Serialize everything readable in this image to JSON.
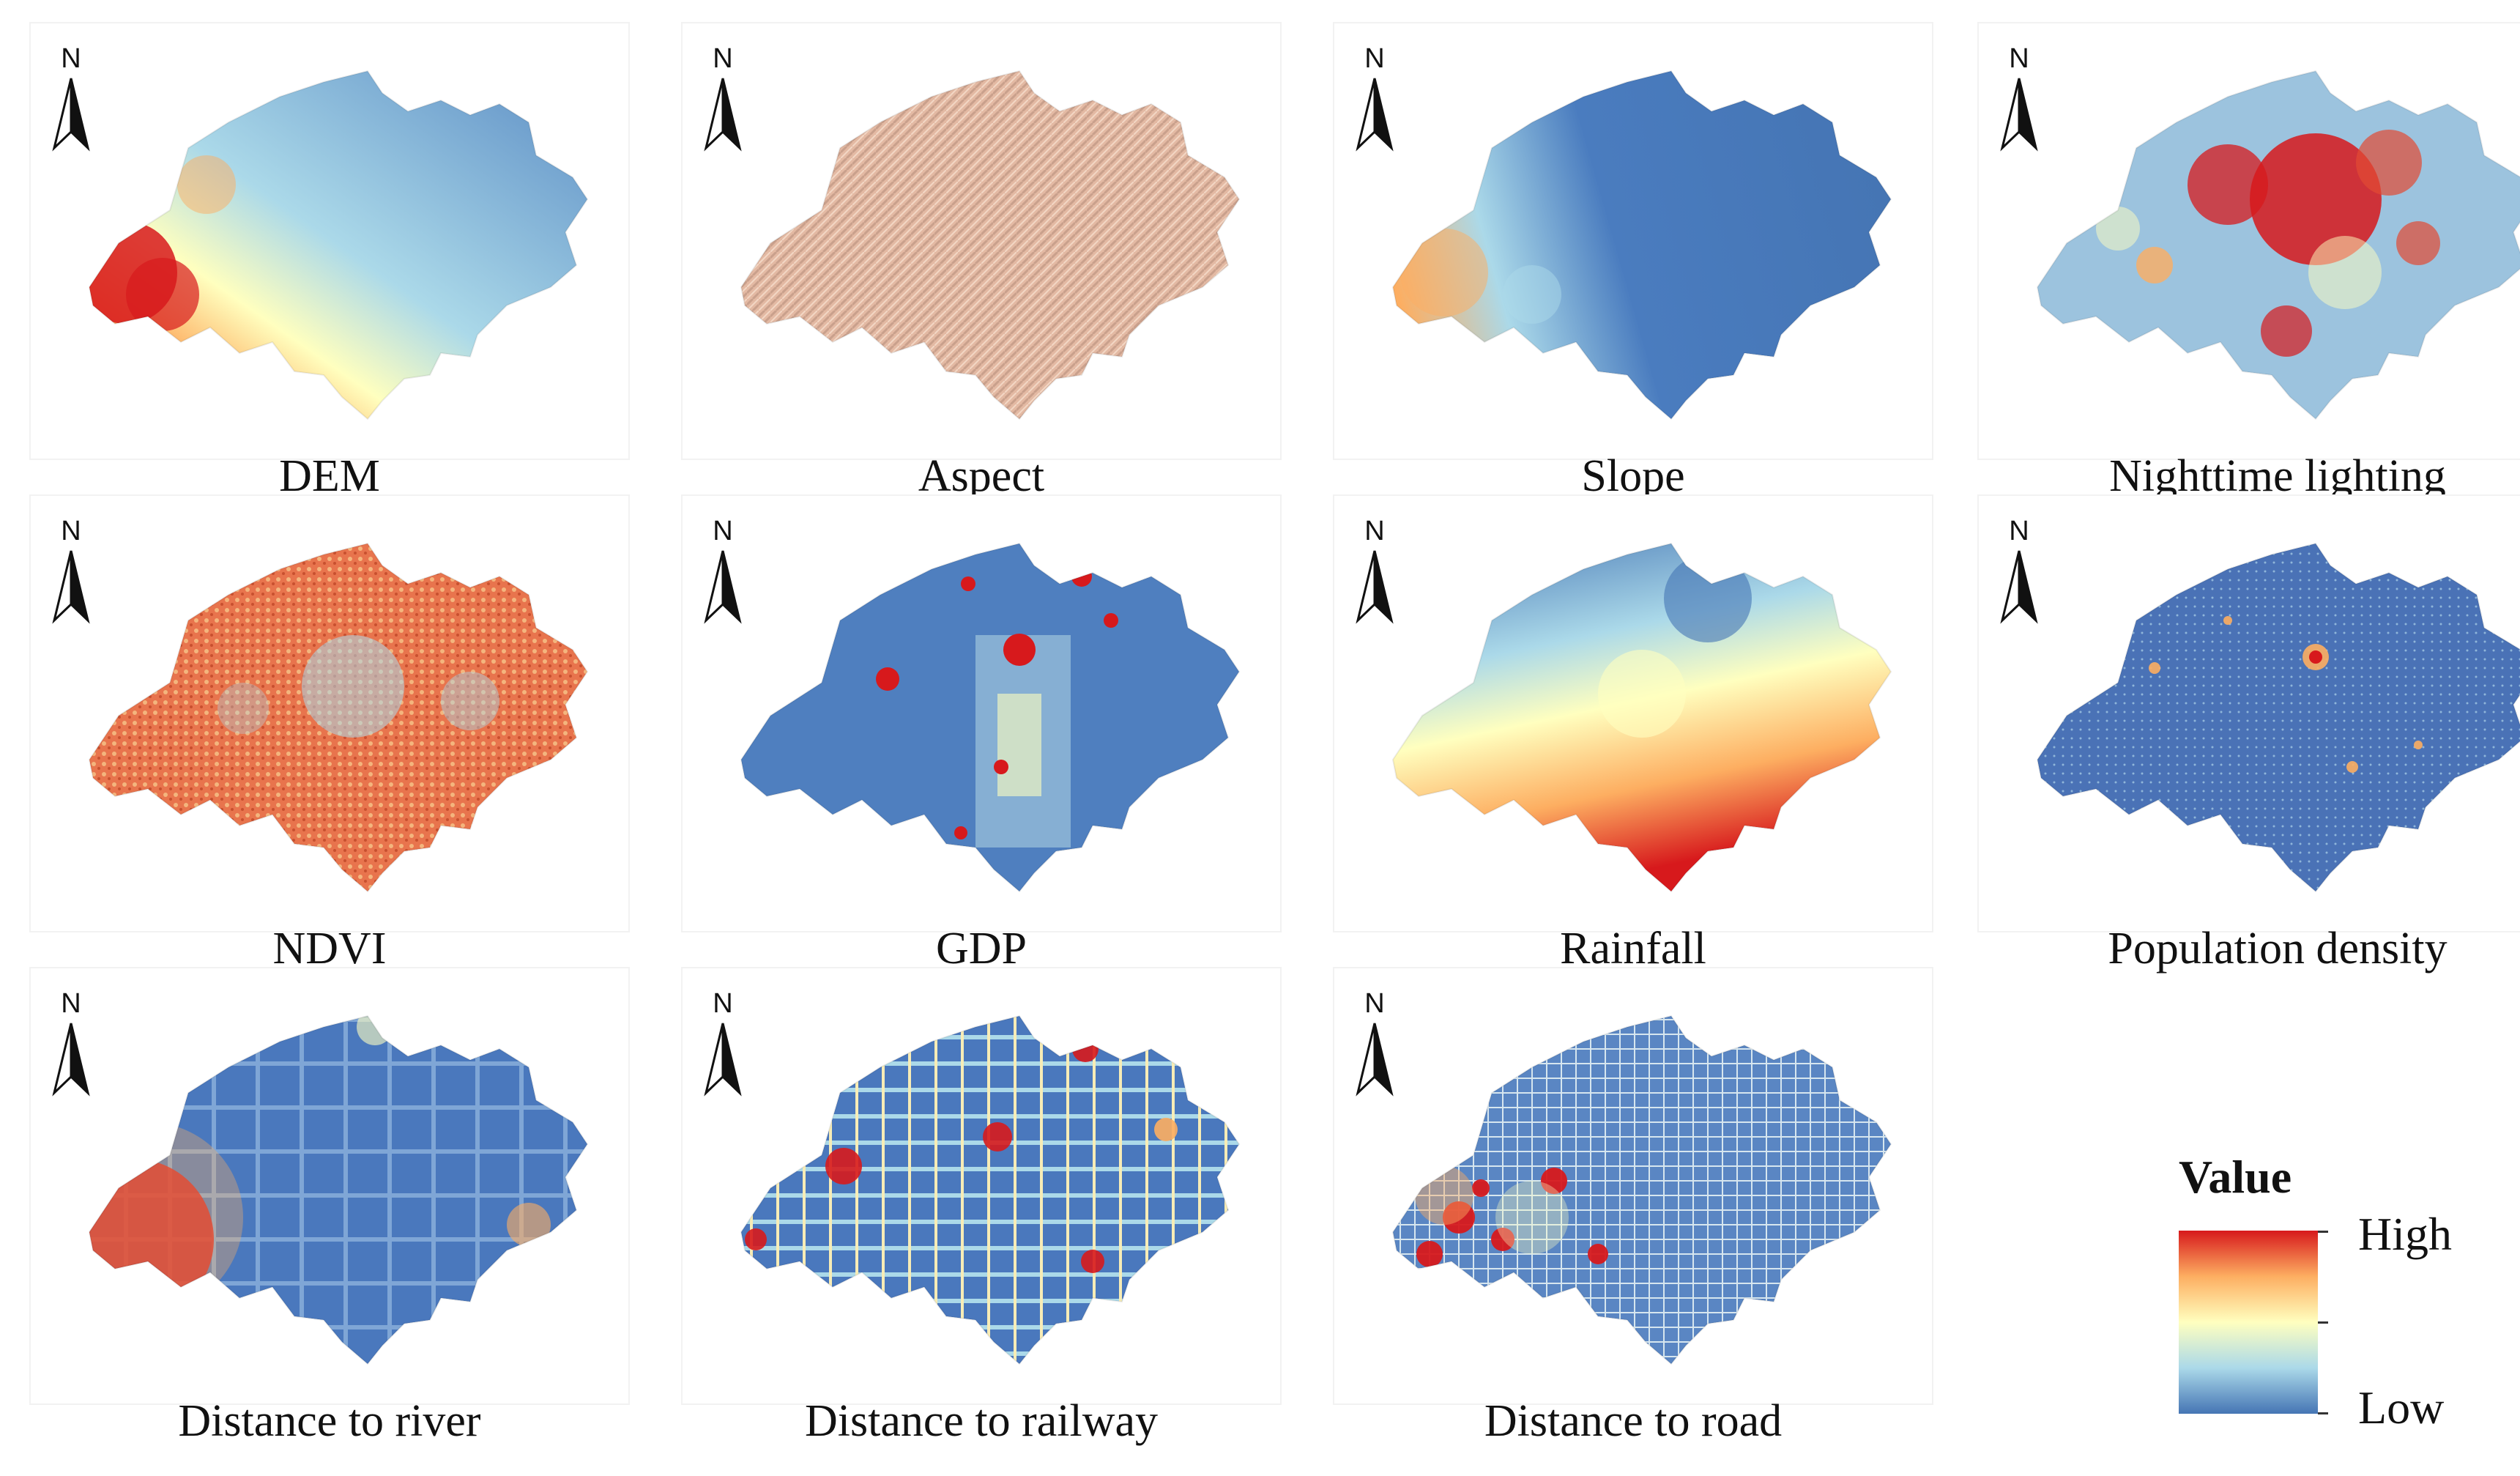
{
  "panels": [
    {
      "label": "DEM",
      "style": "dem"
    },
    {
      "label": "Aspect",
      "style": "aspect"
    },
    {
      "label": "Slope",
      "style": "slope"
    },
    {
      "label": "Nighttime lighting",
      "style": "night"
    },
    {
      "label": "NDVI",
      "style": "ndvi"
    },
    {
      "label": "GDP",
      "style": "gdp"
    },
    {
      "label": "Rainfall",
      "style": "rain"
    },
    {
      "label": "Population density",
      "style": "pop"
    },
    {
      "label": "Distance to river",
      "style": "river"
    },
    {
      "label": "Distance to railway",
      "style": "railway"
    },
    {
      "label": "Distance to road",
      "style": "road"
    }
  ],
  "north_label": "N",
  "legend": {
    "title": "Value",
    "high": "High",
    "low": "Low"
  },
  "colors": {
    "high": "#d7191c",
    "mid": "#ffffbf",
    "low": "#4575b4"
  }
}
